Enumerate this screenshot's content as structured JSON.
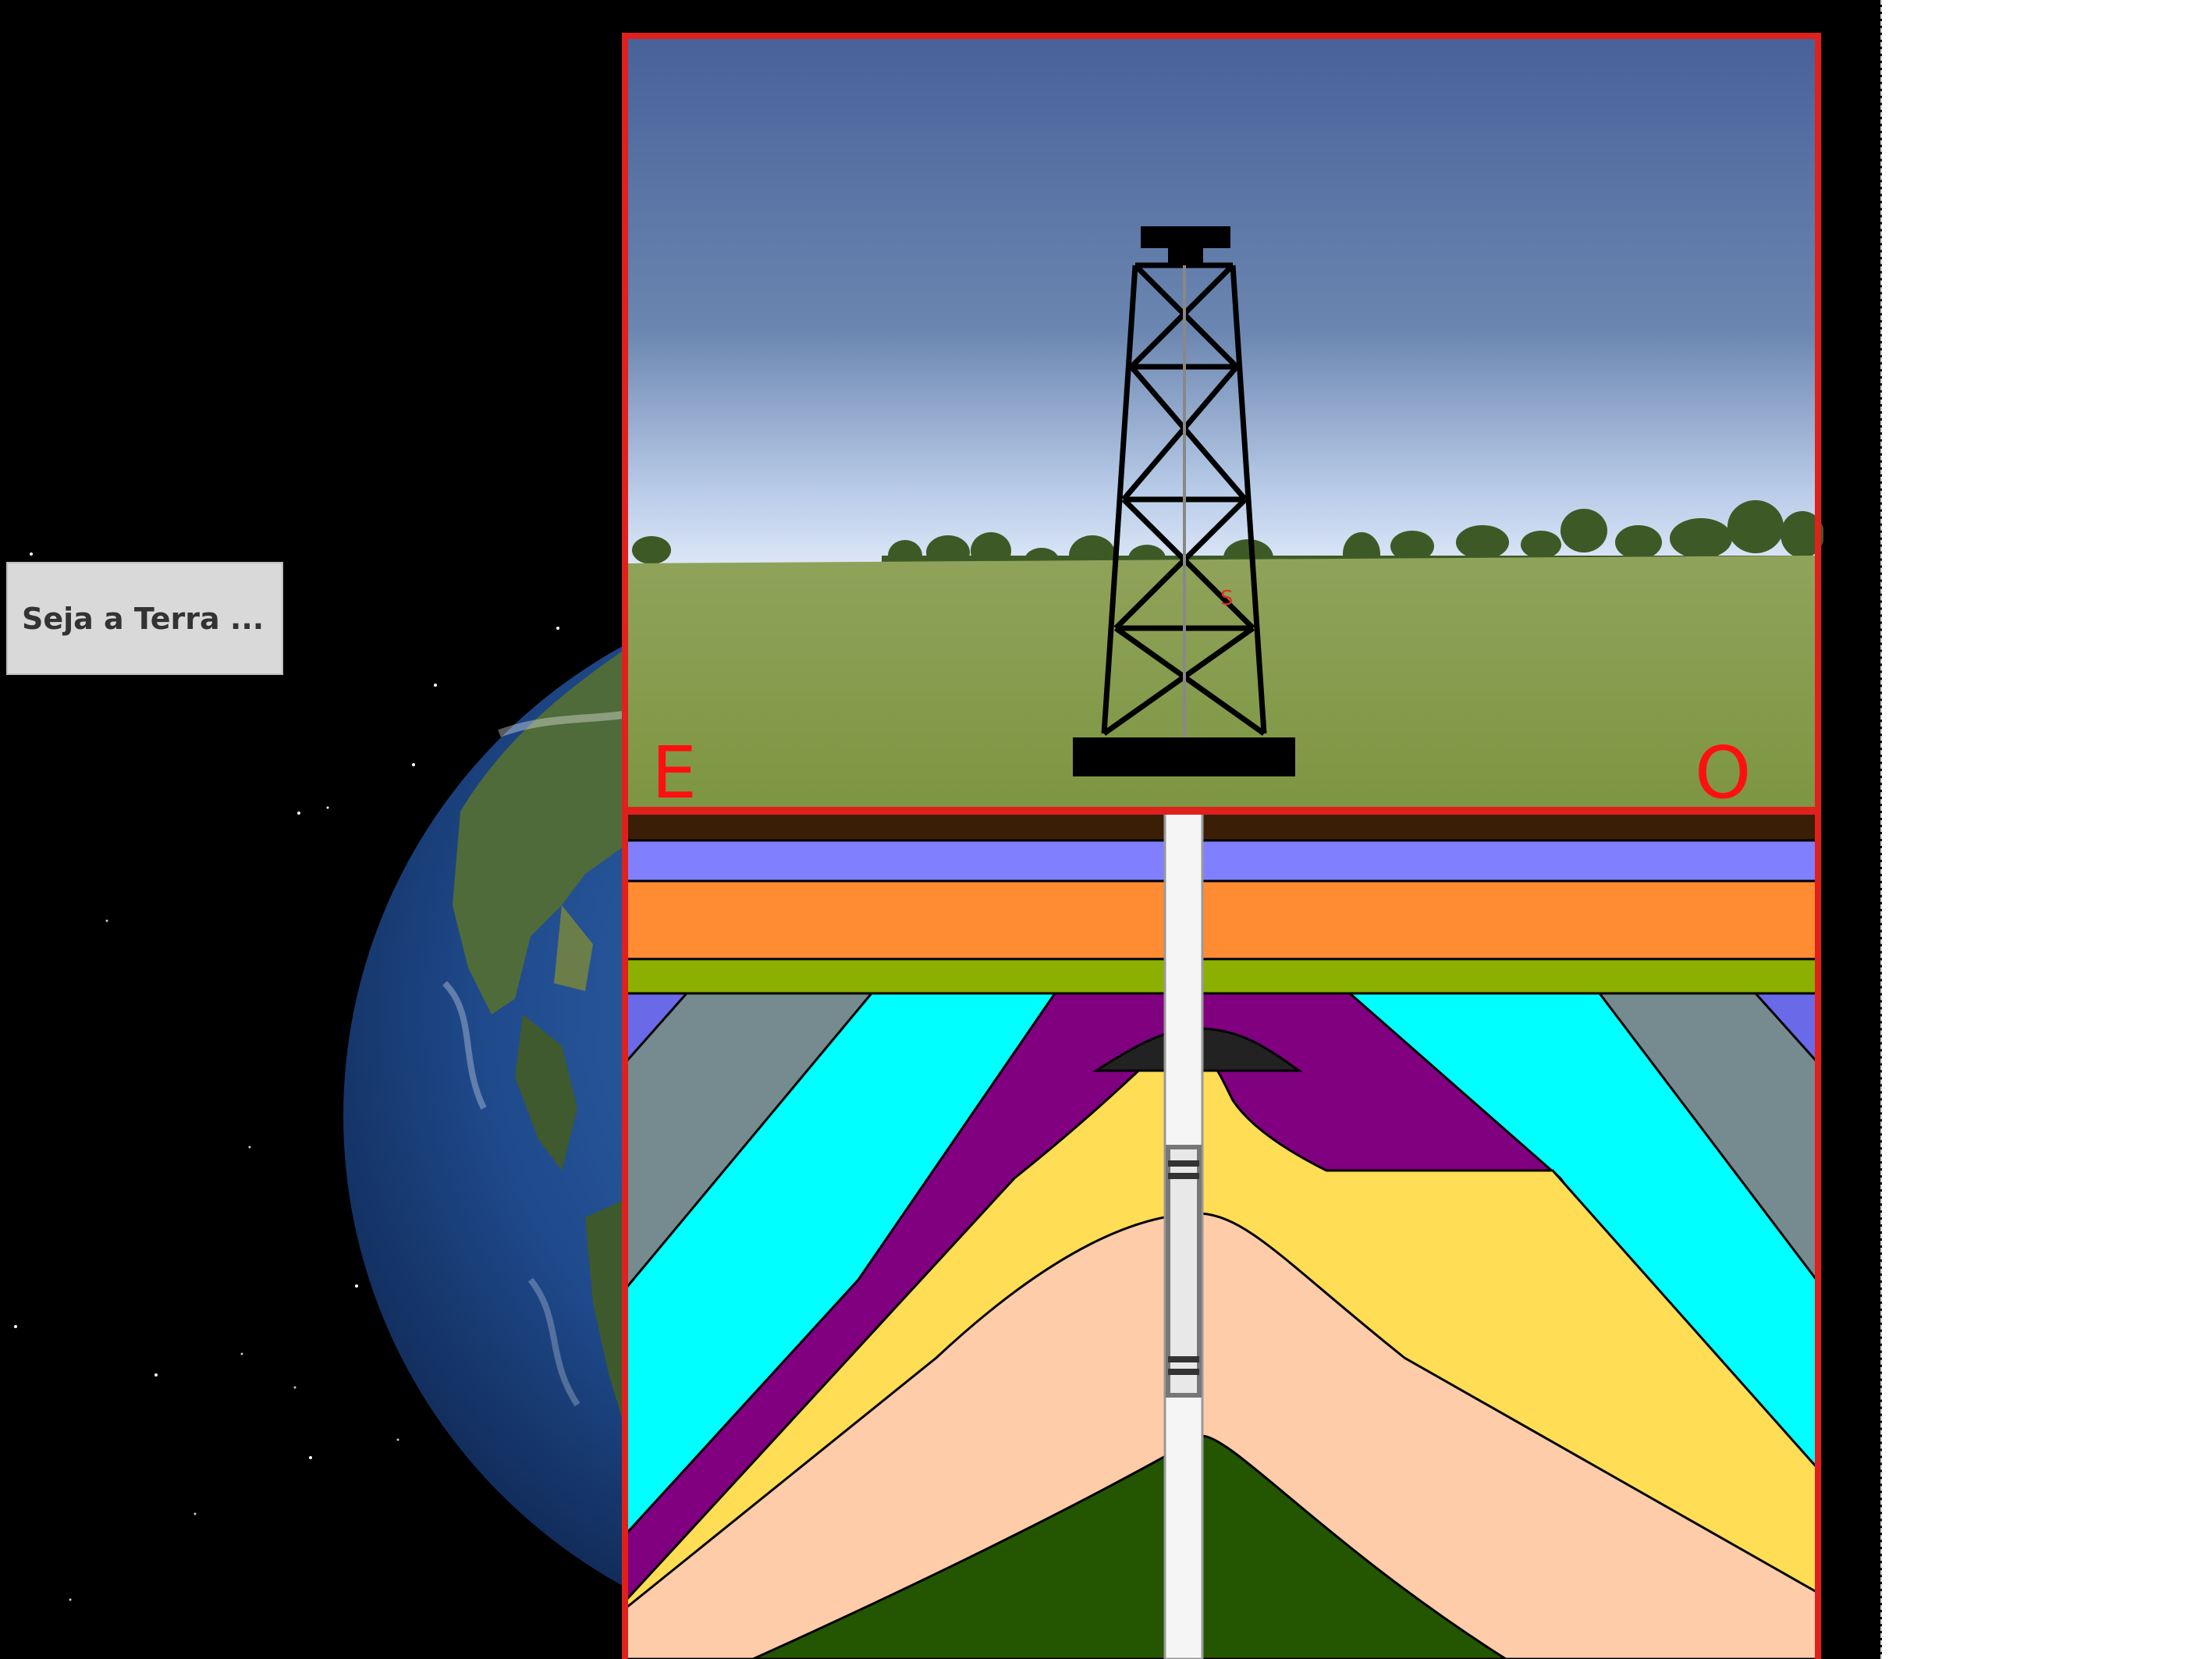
{
  "app": {
    "button_label": "Seja a Terra ...",
    "direction_east": "E",
    "direction_west": "O",
    "tower_marker": "S"
  },
  "colors": {
    "frame": "#e0201c",
    "sky_top": "#4a6394",
    "sky_horizon": "#dbe6f8",
    "grass": "#8ea04c",
    "layer_topsoil": "#3a1e05",
    "layer_lilac": "#8080ff",
    "layer_orange": "#ff8c33",
    "layer_olive": "#8cb000",
    "layer_slate": "#768b8f",
    "layer_cyan": "#00ffff",
    "layer_purple": "#800080",
    "layer_yellow": "#ffdd55",
    "layer_peach": "#ffccaa",
    "layer_darkgreen": "#245500",
    "oil_pocket": "#222222",
    "drill_pipe": "#f5f5f5"
  },
  "icons": [
    "drill-tower-icon",
    "drill-bit-icon",
    "earth-globe-icon",
    "star-field"
  ]
}
